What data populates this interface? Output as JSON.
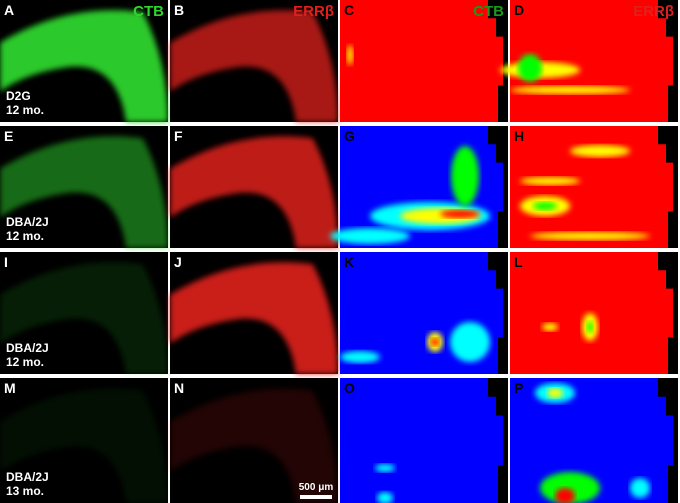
{
  "figure": {
    "rows": [
      {
        "label": [
          "D2G",
          "12 mo."
        ],
        "panels": [
          {
            "letter": "A",
            "channel": "CTB"
          },
          {
            "letter": "B",
            "channel": "ERRβ"
          },
          {
            "letter": "C",
            "channel": "CTB"
          },
          {
            "letter": "D",
            "channel": "ERRβ"
          }
        ]
      },
      {
        "label": [
          "DBA/2J",
          "12 mo."
        ],
        "panels": [
          {
            "letter": "E"
          },
          {
            "letter": "F"
          },
          {
            "letter": "G"
          },
          {
            "letter": "H"
          }
        ]
      },
      {
        "label": [
          "DBA/2J",
          "12 mo."
        ],
        "panels": [
          {
            "letter": "I"
          },
          {
            "letter": "J"
          },
          {
            "letter": "K"
          },
          {
            "letter": "L"
          }
        ]
      },
      {
        "label": [
          "DBA/2J",
          "13 mo."
        ],
        "panels": [
          {
            "letter": "M"
          },
          {
            "letter": "N"
          },
          {
            "letter": "O"
          },
          {
            "letter": "P"
          }
        ]
      }
    ],
    "scale_bar": "500 μm"
  }
}
